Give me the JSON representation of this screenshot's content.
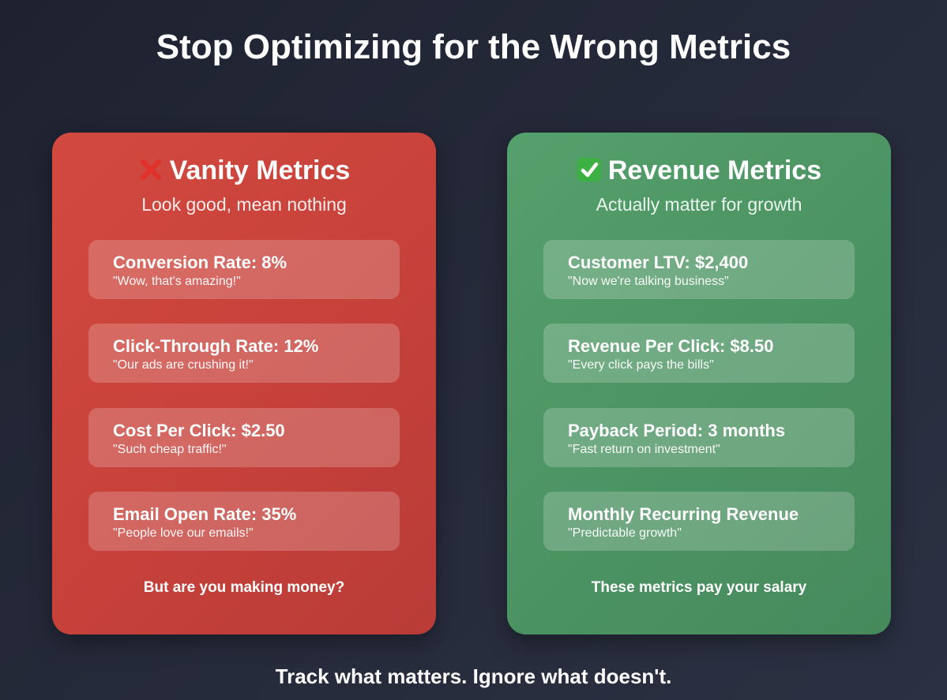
{
  "title": "Stop Optimizing for the Wrong Metrics",
  "vanity": {
    "icon": "red-x-icon",
    "heading": "Vanity Metrics",
    "subtitle": "Look good, mean nothing",
    "metrics": [
      {
        "name": "Conversion Rate: 8%",
        "quote": "\"Wow, that's amazing!\""
      },
      {
        "name": "Click-Through Rate: 12%",
        "quote": "\"Our ads are crushing it!\""
      },
      {
        "name": "Cost Per Click: $2.50",
        "quote": "\"Such cheap traffic!\""
      },
      {
        "name": "Email Open Rate: 35%",
        "quote": "\"People love our emails!\""
      }
    ],
    "footer": "But are you making money?",
    "color": "#c8423b"
  },
  "revenue": {
    "icon": "green-check-icon",
    "heading": "Revenue Metrics",
    "subtitle": "Actually matter for growth",
    "metrics": [
      {
        "name": "Customer LTV: $2,400",
        "quote": "\"Now we're talking business\""
      },
      {
        "name": "Revenue Per Click: $8.50",
        "quote": "\"Every click pays the bills\""
      },
      {
        "name": "Payback Period: 3 months",
        "quote": "\"Fast return on investment\""
      },
      {
        "name": "Monthly Recurring Revenue",
        "quote": "\"Predictable growth\""
      }
    ],
    "footer": "These metrics pay your salary",
    "color": "#4c9463"
  },
  "tagline": "Track what matters. Ignore what doesn't."
}
